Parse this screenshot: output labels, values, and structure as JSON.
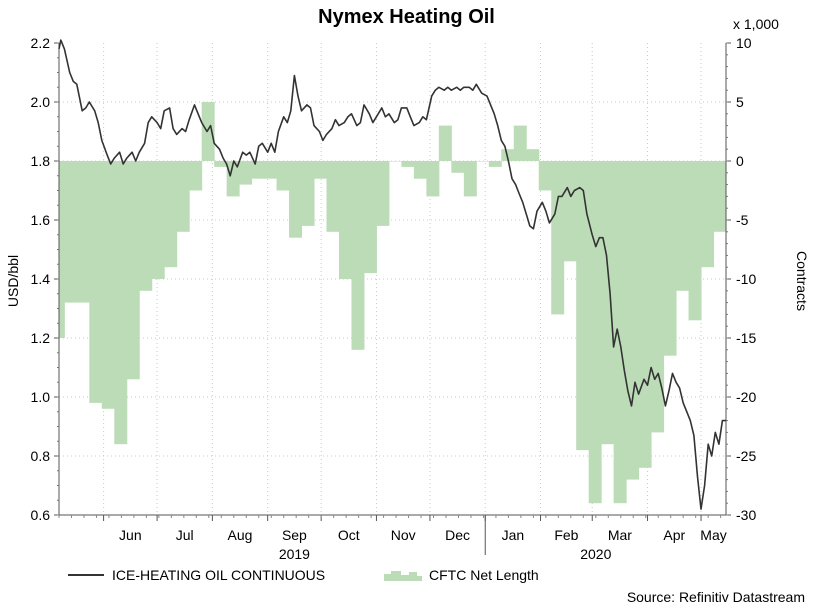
{
  "chart_data": {
    "type": "line",
    "title": "Nymex Heating Oil",
    "xlabel": "",
    "ylabel": "USD/bbl",
    "y2label": "Contracts",
    "y2_multiplier": "x 1,000",
    "source": "Source: Refinitiv Datastream",
    "grid": true,
    "legend_position": "bottom",
    "ylim": [
      0.6,
      2.2
    ],
    "y_ticks": [
      "0.6",
      "0.8",
      "1.0",
      "1.2",
      "1.4",
      "1.6",
      "1.8",
      "2.0",
      "2.2"
    ],
    "y2lim": [
      -30,
      10
    ],
    "y2_ticks": [
      "-30",
      "-25",
      "-20",
      "-15",
      "-10",
      "-5",
      "0",
      "5",
      "10"
    ],
    "x_month_labels": [
      "Jun",
      "Jul",
      "Aug",
      "Sep",
      "Oct",
      "Nov",
      "Dec",
      "Jan",
      "Feb",
      "Mar",
      "Apr",
      "May"
    ],
    "x_year_labels": [
      "2019",
      "2020"
    ],
    "xlim": [
      "2019-05-07",
      "2020-05-15"
    ],
    "series": [
      {
        "name": "ICE-HEATING OIL CONTINUOUS",
        "kind": "line",
        "axis": "left",
        "color": "#333333",
        "points": [
          [
            "2019-05-07",
            2.18
          ],
          [
            "2019-05-08",
            2.21
          ],
          [
            "2019-05-10",
            2.18
          ],
          [
            "2019-05-13",
            2.1
          ],
          [
            "2019-05-15",
            2.07
          ],
          [
            "2019-05-17",
            2.06
          ],
          [
            "2019-05-20",
            1.97
          ],
          [
            "2019-05-22",
            1.98
          ],
          [
            "2019-05-24",
            2.0
          ],
          [
            "2019-05-27",
            1.97
          ],
          [
            "2019-05-29",
            1.93
          ],
          [
            "2019-05-31",
            1.87
          ],
          [
            "2019-06-03",
            1.82
          ],
          [
            "2019-06-05",
            1.79
          ],
          [
            "2019-06-07",
            1.81
          ],
          [
            "2019-06-10",
            1.83
          ],
          [
            "2019-06-12",
            1.79
          ],
          [
            "2019-06-14",
            1.81
          ],
          [
            "2019-06-17",
            1.83
          ],
          [
            "2019-06-19",
            1.8
          ],
          [
            "2019-06-21",
            1.83
          ],
          [
            "2019-06-24",
            1.86
          ],
          [
            "2019-06-26",
            1.93
          ],
          [
            "2019-06-28",
            1.95
          ],
          [
            "2019-07-01",
            1.93
          ],
          [
            "2019-07-03",
            1.91
          ],
          [
            "2019-07-05",
            1.97
          ],
          [
            "2019-07-08",
            1.98
          ],
          [
            "2019-07-10",
            1.91
          ],
          [
            "2019-07-12",
            1.89
          ],
          [
            "2019-07-15",
            1.91
          ],
          [
            "2019-07-17",
            1.9
          ],
          [
            "2019-07-19",
            1.94
          ],
          [
            "2019-07-22",
            1.99
          ],
          [
            "2019-07-24",
            1.96
          ],
          [
            "2019-07-26",
            1.93
          ],
          [
            "2019-07-29",
            1.9
          ],
          [
            "2019-07-31",
            1.92
          ],
          [
            "2019-08-02",
            1.86
          ],
          [
            "2019-08-05",
            1.84
          ],
          [
            "2019-08-07",
            1.81
          ],
          [
            "2019-08-09",
            1.79
          ],
          [
            "2019-08-11",
            1.75
          ],
          [
            "2019-08-13",
            1.8
          ],
          [
            "2019-08-15",
            1.78
          ],
          [
            "2019-08-18",
            1.83
          ],
          [
            "2019-08-20",
            1.82
          ],
          [
            "2019-08-22",
            1.83
          ],
          [
            "2019-08-25",
            1.79
          ],
          [
            "2019-08-27",
            1.85
          ],
          [
            "2019-08-29",
            1.86
          ],
          [
            "2019-09-01",
            1.83
          ],
          [
            "2019-09-03",
            1.86
          ],
          [
            "2019-09-05",
            1.83
          ],
          [
            "2019-09-07",
            1.9
          ],
          [
            "2019-09-10",
            1.95
          ],
          [
            "2019-09-12",
            1.93
          ],
          [
            "2019-09-14",
            1.97
          ],
          [
            "2019-09-16",
            2.09
          ],
          [
            "2019-09-18",
            2.02
          ],
          [
            "2019-09-20",
            1.97
          ],
          [
            "2019-09-23",
            1.99
          ],
          [
            "2019-09-25",
            1.98
          ],
          [
            "2019-09-27",
            1.92
          ],
          [
            "2019-09-30",
            1.9
          ],
          [
            "2019-10-02",
            1.87
          ],
          [
            "2019-10-04",
            1.89
          ],
          [
            "2019-10-07",
            1.91
          ],
          [
            "2019-10-09",
            1.94
          ],
          [
            "2019-10-11",
            1.92
          ],
          [
            "2019-10-14",
            1.93
          ],
          [
            "2019-10-16",
            1.95
          ],
          [
            "2019-10-18",
            1.96
          ],
          [
            "2019-10-21",
            1.92
          ],
          [
            "2019-10-23",
            1.93
          ],
          [
            "2019-10-25",
            1.99
          ],
          [
            "2019-10-28",
            1.96
          ],
          [
            "2019-10-30",
            1.93
          ],
          [
            "2019-11-01",
            1.95
          ],
          [
            "2019-11-04",
            1.98
          ],
          [
            "2019-11-06",
            1.95
          ],
          [
            "2019-11-08",
            1.96
          ],
          [
            "2019-11-11",
            1.93
          ],
          [
            "2019-11-13",
            1.94
          ],
          [
            "2019-11-15",
            1.98
          ],
          [
            "2019-11-18",
            1.98
          ],
          [
            "2019-11-20",
            1.95
          ],
          [
            "2019-11-22",
            1.92
          ],
          [
            "2019-11-25",
            1.93
          ],
          [
            "2019-11-27",
            1.95
          ],
          [
            "2019-11-29",
            1.94
          ],
          [
            "2019-12-02",
            2.02
          ],
          [
            "2019-12-04",
            2.04
          ],
          [
            "2019-12-06",
            2.05
          ],
          [
            "2019-12-09",
            2.04
          ],
          [
            "2019-12-11",
            2.05
          ],
          [
            "2019-12-13",
            2.04
          ],
          [
            "2019-12-16",
            2.05
          ],
          [
            "2019-12-18",
            2.04
          ],
          [
            "2019-12-20",
            2.05
          ],
          [
            "2019-12-23",
            2.05
          ],
          [
            "2019-12-25",
            2.04
          ],
          [
            "2019-12-27",
            2.06
          ],
          [
            "2019-12-30",
            2.03
          ],
          [
            "2020-01-02",
            2.02
          ],
          [
            "2020-01-04",
            1.99
          ],
          [
            "2020-01-06",
            1.96
          ],
          [
            "2020-01-08",
            1.92
          ],
          [
            "2020-01-10",
            1.87
          ],
          [
            "2020-01-12",
            1.85
          ],
          [
            "2020-01-14",
            1.8
          ],
          [
            "2020-01-16",
            1.74
          ],
          [
            "2020-01-18",
            1.72
          ],
          [
            "2020-01-20",
            1.69
          ],
          [
            "2020-01-22",
            1.66
          ],
          [
            "2020-01-24",
            1.62
          ],
          [
            "2020-01-26",
            1.58
          ],
          [
            "2020-01-28",
            1.57
          ],
          [
            "2020-01-30",
            1.63
          ],
          [
            "2020-02-02",
            1.66
          ],
          [
            "2020-02-04",
            1.63
          ],
          [
            "2020-02-06",
            1.59
          ],
          [
            "2020-02-09",
            1.62
          ],
          [
            "2020-02-11",
            1.68
          ],
          [
            "2020-02-13",
            1.68
          ],
          [
            "2020-02-16",
            1.71
          ],
          [
            "2020-02-18",
            1.68
          ],
          [
            "2020-02-20",
            1.7
          ],
          [
            "2020-02-23",
            1.71
          ],
          [
            "2020-02-25",
            1.7
          ],
          [
            "2020-02-27",
            1.62
          ],
          [
            "2020-03-01",
            1.55
          ],
          [
            "2020-03-03",
            1.51
          ],
          [
            "2020-03-05",
            1.54
          ],
          [
            "2020-03-07",
            1.54
          ],
          [
            "2020-03-09",
            1.48
          ],
          [
            "2020-03-11",
            1.35
          ],
          [
            "2020-03-13",
            1.17
          ],
          [
            "2020-03-15",
            1.23
          ],
          [
            "2020-03-17",
            1.17
          ],
          [
            "2020-03-19",
            1.09
          ],
          [
            "2020-03-21",
            1.02
          ],
          [
            "2020-03-23",
            0.97
          ],
          [
            "2020-03-25",
            1.05
          ],
          [
            "2020-03-27",
            1.01
          ],
          [
            "2020-03-30",
            1.06
          ],
          [
            "2020-04-01",
            1.04
          ],
          [
            "2020-04-03",
            1.1
          ],
          [
            "2020-04-05",
            1.06
          ],
          [
            "2020-04-07",
            1.08
          ],
          [
            "2020-04-09",
            1.03
          ],
          [
            "2020-04-11",
            0.97
          ],
          [
            "2020-04-13",
            1.02
          ],
          [
            "2020-04-15",
            1.08
          ],
          [
            "2020-04-17",
            1.05
          ],
          [
            "2020-04-19",
            1.03
          ],
          [
            "2020-04-21",
            0.98
          ],
          [
            "2020-04-23",
            0.95
          ],
          [
            "2020-04-25",
            0.92
          ],
          [
            "2020-04-27",
            0.87
          ],
          [
            "2020-04-29",
            0.73
          ],
          [
            "2020-05-01",
            0.62
          ],
          [
            "2020-05-03",
            0.7
          ],
          [
            "2020-05-05",
            0.84
          ],
          [
            "2020-05-07",
            0.8
          ],
          [
            "2020-05-09",
            0.88
          ],
          [
            "2020-05-11",
            0.84
          ],
          [
            "2020-05-13",
            0.92
          ],
          [
            "2020-05-15",
            0.92
          ]
        ]
      },
      {
        "name": "CFTC Net Length",
        "kind": "area-step",
        "axis": "right",
        "color": "#bcdcb8",
        "points": [
          [
            "2019-05-07",
            -15
          ],
          [
            "2019-05-10",
            -12
          ],
          [
            "2019-05-17",
            -12
          ],
          [
            "2019-05-24",
            -20.5
          ],
          [
            "2019-05-31",
            -21
          ],
          [
            "2019-06-07",
            -24
          ],
          [
            "2019-06-14",
            -18.5
          ],
          [
            "2019-06-21",
            -11
          ],
          [
            "2019-06-28",
            -10
          ],
          [
            "2019-07-05",
            -9
          ],
          [
            "2019-07-12",
            -6
          ],
          [
            "2019-07-19",
            -2.5
          ],
          [
            "2019-07-26",
            5
          ],
          [
            "2019-08-02",
            -0.5
          ],
          [
            "2019-08-09",
            -3
          ],
          [
            "2019-08-16",
            -2
          ],
          [
            "2019-08-23",
            -1.5
          ],
          [
            "2019-08-30",
            -1.5
          ],
          [
            "2019-09-06",
            -2.5
          ],
          [
            "2019-09-13",
            -6.5
          ],
          [
            "2019-09-20",
            -5.5
          ],
          [
            "2019-09-27",
            -1.5
          ],
          [
            "2019-10-04",
            -6
          ],
          [
            "2019-10-11",
            -10
          ],
          [
            "2019-10-18",
            -16
          ],
          [
            "2019-10-25",
            -9.5
          ],
          [
            "2019-11-01",
            -5.5
          ],
          [
            "2019-11-08",
            0
          ],
          [
            "2019-11-15",
            -0.5
          ],
          [
            "2019-11-22",
            -1.5
          ],
          [
            "2019-11-29",
            -3
          ],
          [
            "2019-12-06",
            3
          ],
          [
            "2019-12-13",
            -1
          ],
          [
            "2019-12-20",
            -3
          ],
          [
            "2019-12-27",
            0
          ],
          [
            "2020-01-03",
            -0.5
          ],
          [
            "2020-01-10",
            1
          ],
          [
            "2020-01-17",
            3
          ],
          [
            "2020-01-24",
            1
          ],
          [
            "2020-01-31",
            -2.5
          ],
          [
            "2020-02-07",
            -13
          ],
          [
            "2020-02-14",
            -8.5
          ],
          [
            "2020-02-21",
            -24.5
          ],
          [
            "2020-02-28",
            -29
          ],
          [
            "2020-03-06",
            -24
          ],
          [
            "2020-03-13",
            -29
          ],
          [
            "2020-03-20",
            -27
          ],
          [
            "2020-03-27",
            -26
          ],
          [
            "2020-04-03",
            -23
          ],
          [
            "2020-04-10",
            -16.5
          ],
          [
            "2020-04-17",
            -11
          ],
          [
            "2020-04-24",
            -13.5
          ],
          [
            "2020-05-01",
            -9
          ],
          [
            "2020-05-08",
            -6
          ],
          [
            "2020-05-15",
            -6
          ]
        ]
      }
    ]
  }
}
